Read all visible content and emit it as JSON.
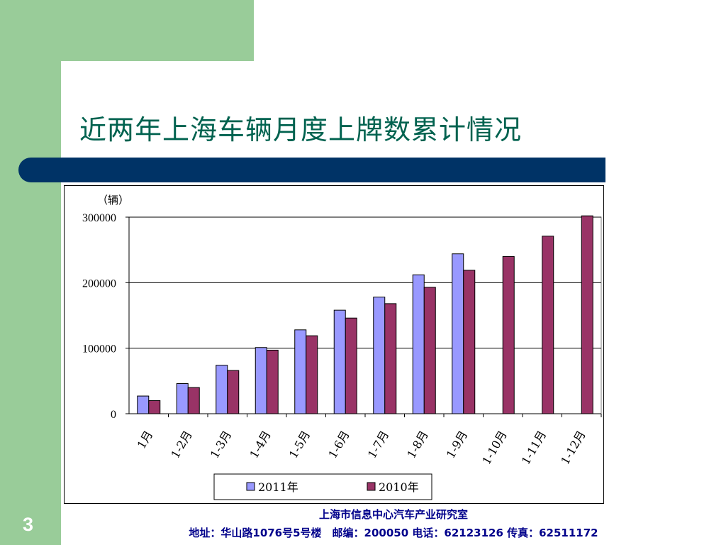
{
  "slide": {
    "title": "近两年上海车辆月度上牌数累计情况",
    "page_number": "3",
    "footer_org": "上海市信息中心汽车产业研究室",
    "footer_contact": "地址：华山路1076号5号楼　邮编：200050  电话：62123126  传真：62511172",
    "colors": {
      "green": "#99cc99",
      "navy": "#003366",
      "title_text": "#00624f",
      "footer_text": "#00008b"
    }
  },
  "chart_data": {
    "type": "bar",
    "unit_label": "（辆）",
    "categories": [
      "1月",
      "1-2月",
      "1-3月",
      "1-4月",
      "1-5月",
      "1-6月",
      "1-7月",
      "1-8月",
      "1-9月",
      "1-10月",
      "1-11月",
      "1-12月"
    ],
    "series": [
      {
        "name": "2011年",
        "color": "#9999ff",
        "values": [
          27000,
          46000,
          74000,
          101000,
          128000,
          158000,
          178000,
          212000,
          244000,
          null,
          null,
          null
        ]
      },
      {
        "name": "2010年",
        "color": "#993366",
        "values": [
          20000,
          40000,
          66000,
          97000,
          119000,
          146000,
          168000,
          193000,
          219000,
          240000,
          271000,
          302000
        ]
      }
    ],
    "ylim": [
      0,
      300000
    ],
    "yticks": [
      0,
      100000,
      200000,
      300000
    ],
    "grid": true,
    "legend_position": "bottom"
  }
}
